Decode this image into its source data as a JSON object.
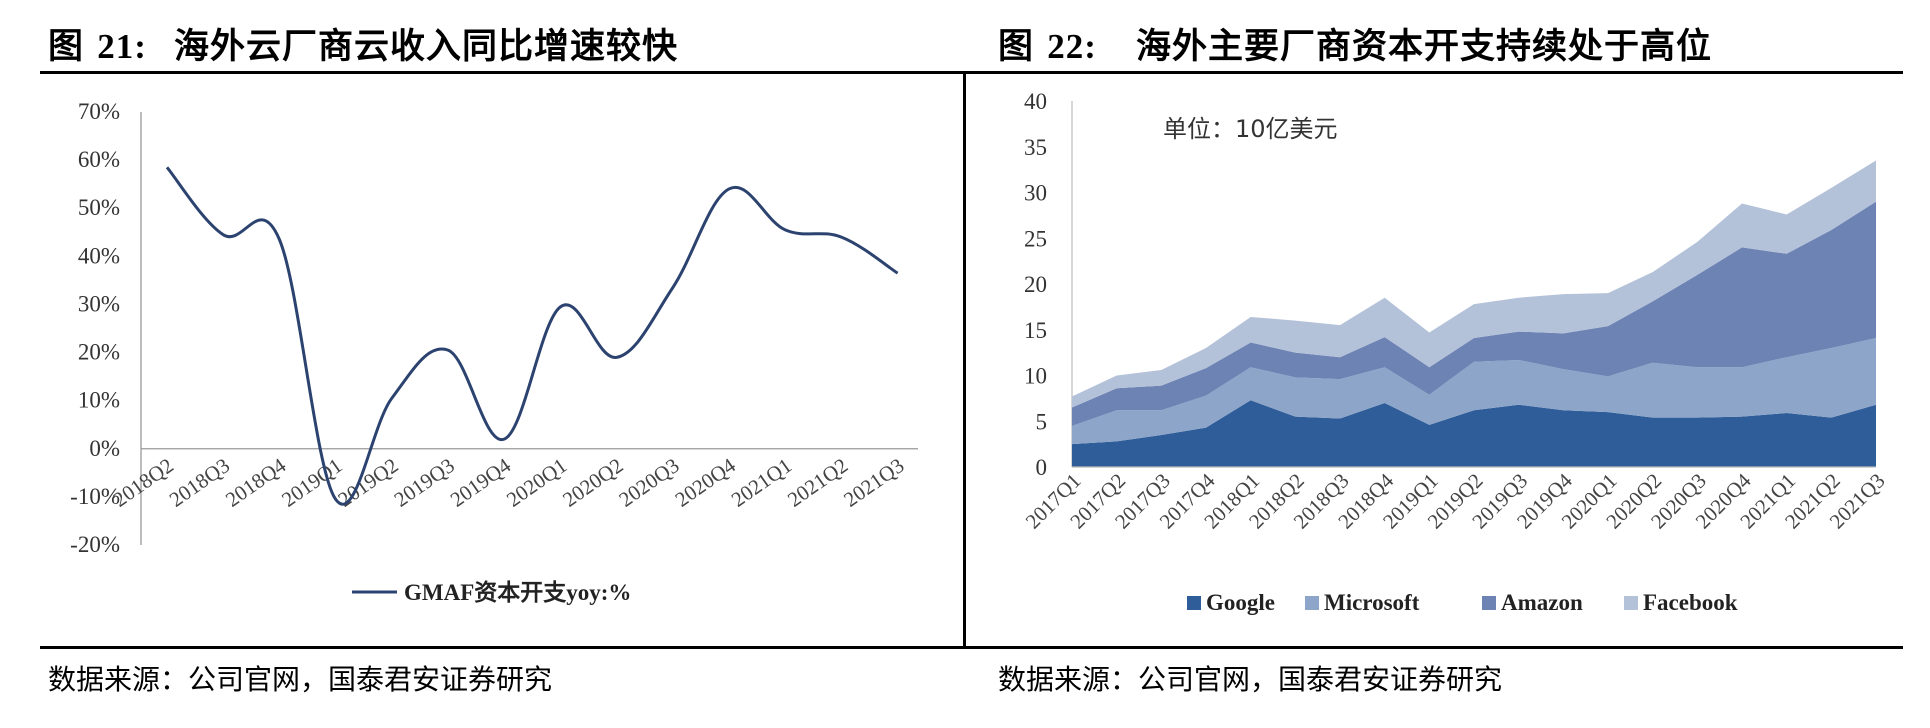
{
  "titles": {
    "left_label": "图",
    "left_num": "21:",
    "left_text": "海外云厂商云收入同比增速较快",
    "right_label": "图",
    "right_num": "22:",
    "right_text": "海外主要厂商资本开支持续处于高位"
  },
  "sources": {
    "left": "数据来源：公司官网，国泰君安证券研究",
    "right": "数据来源：公司官网，国泰君安证券研究"
  },
  "chart_data": [
    {
      "type": "line",
      "title": "海外云厂商云收入同比增速较快",
      "categories": [
        "2018Q2",
        "2018Q3",
        "2018Q4",
        "2019Q1",
        "2019Q2",
        "2019Q3",
        "2019Q4",
        "2020Q1",
        "2020Q2",
        "2020Q3",
        "2020Q4",
        "2021Q1",
        "2021Q2",
        "2021Q3"
      ],
      "series": [
        {
          "name": "GMAF资本开支yoy:%",
          "values": [
            58.5,
            44.5,
            43.5,
            -10.5,
            10.5,
            20.5,
            2,
            29.5,
            19,
            33.5,
            54,
            45.5,
            44,
            36.5
          ],
          "color": "#2c4370"
        }
      ],
      "yticks": [
        "70%",
        "60%",
        "50%",
        "40%",
        "30%",
        "20%",
        "10%",
        "0%",
        "-10%",
        "-20%"
      ],
      "ylim": [
        -20,
        70
      ],
      "legend": "bottom"
    },
    {
      "type": "area",
      "stacked": true,
      "title": "海外主要厂商资本开支持续处于高位",
      "unit_note": "单位：10亿美元",
      "categories": [
        "2017Q1",
        "2017Q2",
        "2017Q3",
        "2017Q4",
        "2018Q1",
        "2018Q2",
        "2018Q3",
        "2018Q4",
        "2019Q1",
        "2019Q2",
        "2019Q3",
        "2019Q4",
        "2020Q1",
        "2020Q2",
        "2020Q3",
        "2020Q4",
        "2021Q1",
        "2021Q2",
        "2021Q3"
      ],
      "series": [
        {
          "name": "Google",
          "values": [
            2.5,
            2.8,
            3.5,
            4.3,
            7.3,
            5.5,
            5.3,
            7.0,
            4.6,
            6.2,
            6.8,
            6.2,
            6.0,
            5.4,
            5.4,
            5.5,
            5.9,
            5.4,
            6.8
          ],
          "color": "#2e5d9a"
        },
        {
          "name": "Microsoft",
          "values": [
            2.0,
            3.4,
            2.7,
            3.5,
            3.6,
            4.3,
            4.3,
            3.9,
            3.3,
            5.3,
            4.9,
            4.5,
            3.9,
            6.0,
            5.5,
            5.4,
            6.1,
            7.6,
            7.3
          ],
          "color": "#8da5c8"
        },
        {
          "name": "Amazon",
          "values": [
            2.0,
            2.4,
            2.7,
            3.0,
            2.7,
            2.7,
            2.4,
            3.3,
            3.0,
            2.6,
            3.1,
            3.9,
            5.5,
            6.7,
            10.1,
            13.1,
            11.3,
            12.9,
            14.9
          ],
          "color": "#6c83b4"
        },
        {
          "name": "Facebook",
          "values": [
            1.2,
            1.4,
            1.7,
            2.2,
            2.8,
            3.5,
            3.5,
            4.3,
            3.8,
            3.7,
            3.7,
            4.3,
            3.6,
            3.2,
            3.6,
            4.8,
            4.3,
            4.6,
            4.5
          ],
          "color": "#b3c1d9"
        }
      ],
      "yticks": [
        "40",
        "35",
        "30",
        "25",
        "20",
        "15",
        "10",
        "5",
        "0"
      ],
      "ylim": [
        0,
        40
      ],
      "legend": "bottom"
    }
  ]
}
